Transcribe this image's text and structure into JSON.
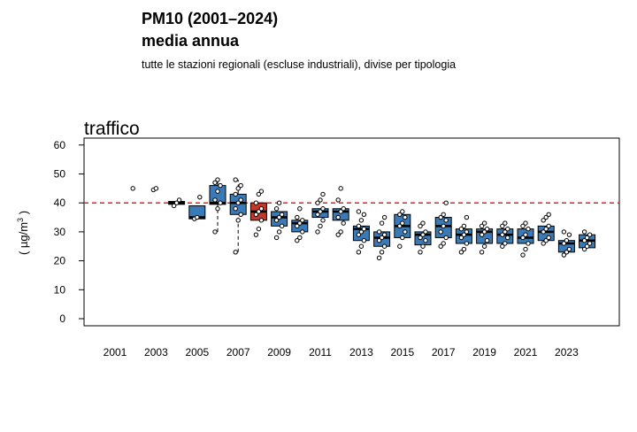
{
  "header": {
    "title_line1": "PM10 (2001–2024)",
    "title_line2": "media annua",
    "subtitle": "tutte le stazioni regionali (escluse industriali), divise per tipologia"
  },
  "chart_data": {
    "type": "boxplot",
    "panel_title": "traffico",
    "ylabel": "( µg/m³ )",
    "ylim": [
      0,
      60
    ],
    "yticks": [
      0,
      10,
      20,
      30,
      40,
      50,
      60
    ],
    "x_tick_labels": [
      "2001",
      "2003",
      "2005",
      "2007",
      "2009",
      "2011",
      "2013",
      "2015",
      "2017",
      "2019",
      "2021",
      "2023"
    ],
    "reference_line": {
      "value": 40,
      "color": "#e8211b",
      "style": "dashed"
    },
    "box_color": "#3a7ab6",
    "median_color": "#000000",
    "box_color_exceeding": "#c0392b",
    "categories": [
      "2001",
      "2002",
      "2003",
      "2004",
      "2005",
      "2006",
      "2007",
      "2008",
      "2009",
      "2010",
      "2011",
      "2012",
      "2013",
      "2014",
      "2015",
      "2016",
      "2017",
      "2018",
      "2019",
      "2020",
      "2021",
      "2022",
      "2023",
      "2024"
    ],
    "boxes": [
      {
        "year": "2001",
        "points": []
      },
      {
        "year": "2002",
        "points": [
          45
        ]
      },
      {
        "year": "2003",
        "points": [
          44.5,
          45
        ]
      },
      {
        "year": "2004",
        "q1": 39.5,
        "median": 40,
        "q3": 40.5,
        "points": [
          39,
          40,
          41
        ]
      },
      {
        "year": "2005",
        "q1": 34.5,
        "median": 35,
        "q3": 39,
        "points": [
          34.5,
          35,
          42
        ]
      },
      {
        "year": "2006",
        "q1": 39.5,
        "median": 40,
        "q3": 46,
        "min": 30,
        "max": 48,
        "points": [
          30,
          38,
          40,
          41,
          44,
          46,
          47,
          48
        ]
      },
      {
        "year": "2007",
        "q1": 36,
        "median": 40,
        "q3": 43,
        "min": 23,
        "max": 48,
        "points": [
          23,
          34,
          36,
          38,
          40,
          41,
          43,
          45,
          46,
          48
        ]
      },
      {
        "year": "2008",
        "q1": 34,
        "median": 37,
        "q3": 40,
        "points": [
          29,
          31,
          34,
          36,
          37,
          38,
          40,
          43,
          44
        ]
      },
      {
        "year": "2009",
        "q1": 32,
        "median": 35,
        "q3": 37,
        "points": [
          28,
          30,
          32,
          34,
          35,
          36,
          38,
          40
        ]
      },
      {
        "year": "2010",
        "q1": 30,
        "median": 33,
        "q3": 34,
        "points": [
          27,
          28,
          30,
          32,
          33,
          34,
          35,
          38
        ]
      },
      {
        "year": "2011",
        "q1": 35,
        "median": 37,
        "q3": 38,
        "points": [
          30,
          32,
          34,
          36,
          37,
          38,
          40,
          41,
          43
        ]
      },
      {
        "year": "2012",
        "q1": 34,
        "median": 37,
        "q3": 38,
        "points": [
          29,
          30,
          33,
          35,
          37,
          38,
          41,
          45
        ]
      },
      {
        "year": "2013",
        "q1": 27,
        "median": 31,
        "q3": 32,
        "points": [
          23,
          25,
          27,
          29,
          30,
          31,
          32,
          34,
          36,
          37
        ]
      },
      {
        "year": "2014",
        "q1": 25,
        "median": 28,
        "q3": 30,
        "points": [
          21,
          23,
          25,
          27,
          28,
          29,
          30,
          33,
          35
        ]
      },
      {
        "year": "2015",
        "q1": 28,
        "median": 32,
        "q3": 36,
        "points": [
          25,
          28,
          30,
          32,
          33,
          35,
          36,
          37
        ]
      },
      {
        "year": "2016",
        "q1": 25.5,
        "median": 29,
        "q3": 30,
        "points": [
          23,
          25,
          27,
          28,
          29,
          30,
          32,
          33
        ]
      },
      {
        "year": "2017",
        "q1": 28,
        "median": 32,
        "q3": 35,
        "points": [
          25,
          26,
          28,
          30,
          32,
          34,
          35,
          36,
          40
        ]
      },
      {
        "year": "2018",
        "q1": 26,
        "median": 29,
        "q3": 31,
        "points": [
          23,
          24,
          26,
          28,
          29,
          30,
          31,
          32,
          35
        ]
      },
      {
        "year": "2019",
        "q1": 26,
        "median": 30,
        "q3": 31,
        "points": [
          23,
          25,
          27,
          29,
          30,
          31,
          32,
          33
        ]
      },
      {
        "year": "2020",
        "q1": 26,
        "median": 29,
        "q3": 31,
        "points": [
          25,
          26,
          28,
          29,
          30,
          31,
          32,
          33
        ]
      },
      {
        "year": "2021",
        "q1": 26,
        "median": 28,
        "q3": 31,
        "points": [
          22,
          24,
          26,
          28,
          29,
          31,
          32,
          33
        ]
      },
      {
        "year": "2022",
        "q1": 27,
        "median": 30,
        "q3": 32,
        "points": [
          26,
          27,
          28,
          30,
          31,
          32,
          34,
          35,
          36
        ]
      },
      {
        "year": "2023",
        "q1": 23,
        "median": 26,
        "q3": 27,
        "points": [
          22,
          23,
          24,
          26,
          27,
          29,
          30
        ]
      },
      {
        "year": "2024",
        "q1": 24.5,
        "median": 27,
        "q3": 29,
        "points": [
          24,
          25,
          26,
          27,
          28,
          29,
          30
        ]
      }
    ]
  }
}
